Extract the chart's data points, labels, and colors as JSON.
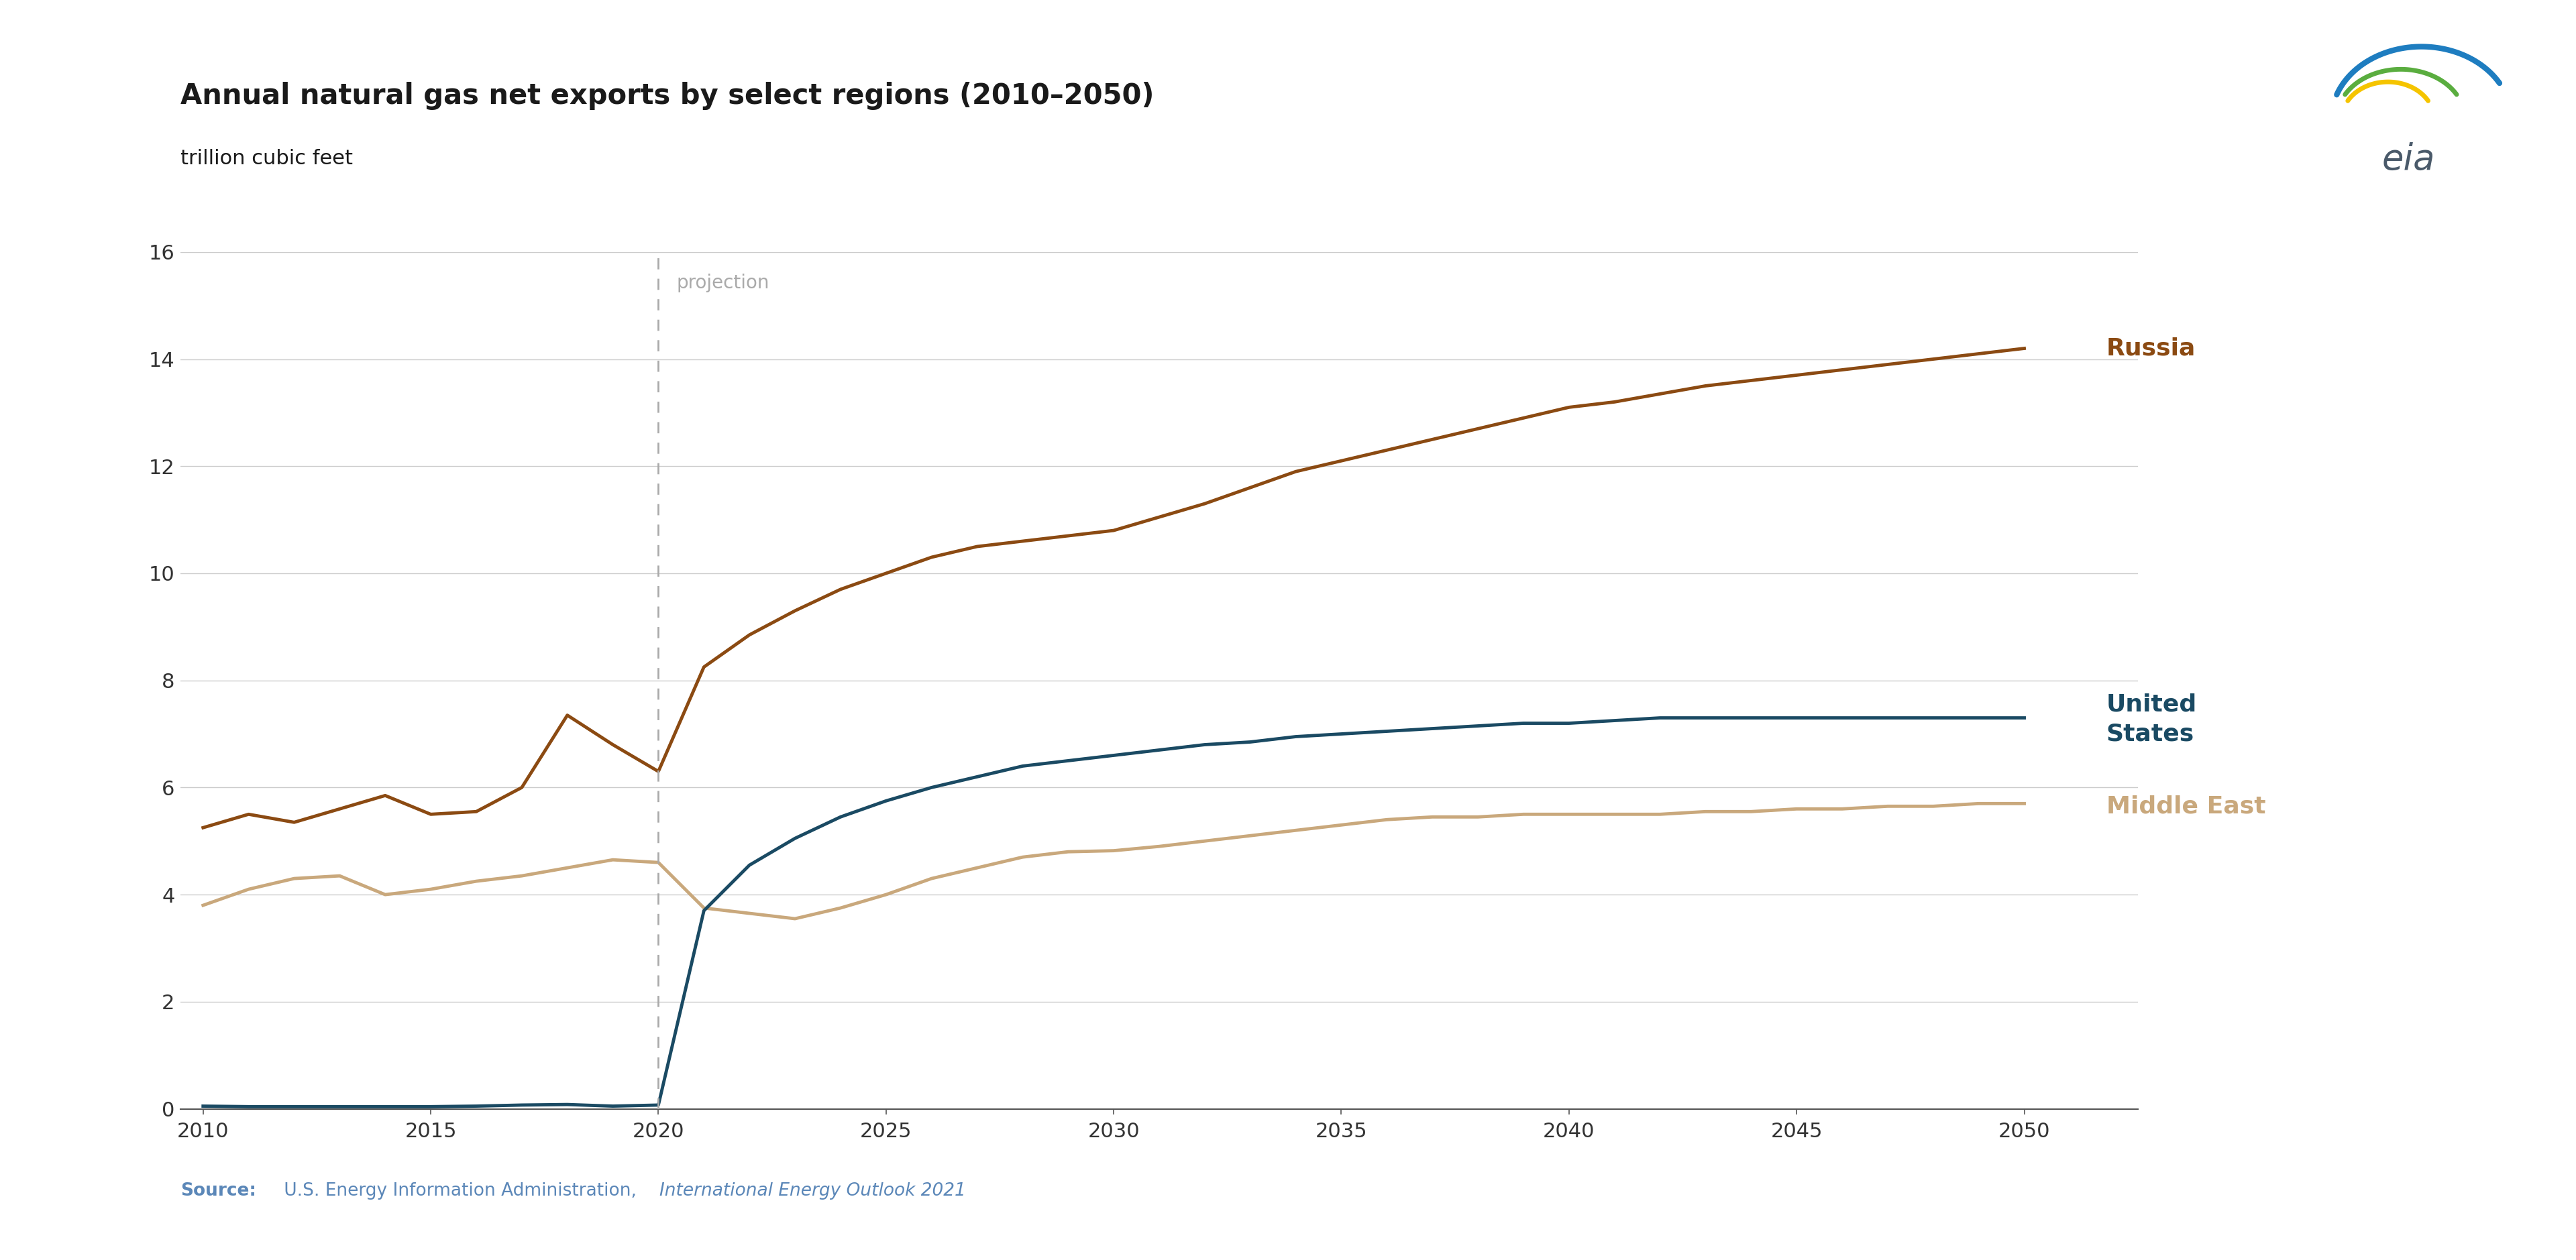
{
  "title": "Annual natural gas net exports by select regions (2010–2050)",
  "subtitle": "trillion cubic feet",
  "source_bold": "Source:",
  "source_normal": " U.S. Energy Information Administration, ",
  "source_italic": "International Energy Outlook 2021",
  "projection_label": "projection",
  "projection_year": 2020,
  "xlim": [
    2009.5,
    2052.5
  ],
  "ylim": [
    0,
    16
  ],
  "yticks": [
    0,
    2,
    4,
    6,
    8,
    10,
    12,
    14,
    16
  ],
  "xticks": [
    2010,
    2015,
    2020,
    2025,
    2030,
    2035,
    2040,
    2045,
    2050
  ],
  "russia_color": "#8B4A12",
  "us_color": "#1A4A63",
  "me_color": "#C9A87C",
  "russia_label": "Russia",
  "us_label": "United\nStates",
  "me_label": "Middle East",
  "background_color": "#FFFFFF",
  "grid_color": "#CCCCCC",
  "source_color": "#5B87B8",
  "title_color": "#1A1A1A",
  "russia_data_years": [
    2010,
    2011,
    2012,
    2013,
    2014,
    2015,
    2016,
    2017,
    2018,
    2019,
    2020,
    2021,
    2022,
    2023,
    2024,
    2025,
    2026,
    2027,
    2028,
    2029,
    2030,
    2031,
    2032,
    2033,
    2034,
    2035,
    2036,
    2037,
    2038,
    2039,
    2040,
    2041,
    2042,
    2043,
    2044,
    2045,
    2046,
    2047,
    2048,
    2049,
    2050
  ],
  "russia_data_vals": [
    5.25,
    5.5,
    5.35,
    5.6,
    5.85,
    5.5,
    5.55,
    6.0,
    7.35,
    6.8,
    6.3,
    8.25,
    8.85,
    9.3,
    9.7,
    10.0,
    10.3,
    10.5,
    10.6,
    10.7,
    10.8,
    11.05,
    11.3,
    11.6,
    11.9,
    12.1,
    12.3,
    12.5,
    12.7,
    12.9,
    13.1,
    13.2,
    13.35,
    13.5,
    13.6,
    13.7,
    13.8,
    13.9,
    14.0,
    14.1,
    14.2
  ],
  "us_data_years": [
    2010,
    2011,
    2012,
    2013,
    2014,
    2015,
    2016,
    2017,
    2018,
    2019,
    2020,
    2021,
    2022,
    2023,
    2024,
    2025,
    2026,
    2027,
    2028,
    2029,
    2030,
    2031,
    2032,
    2033,
    2034,
    2035,
    2036,
    2037,
    2038,
    2039,
    2040,
    2041,
    2042,
    2043,
    2044,
    2045,
    2046,
    2047,
    2048,
    2049,
    2050
  ],
  "us_data_vals": [
    0.05,
    0.04,
    0.04,
    0.04,
    0.04,
    0.04,
    0.05,
    0.07,
    0.08,
    0.05,
    0.07,
    3.7,
    4.55,
    5.05,
    5.45,
    5.75,
    6.0,
    6.2,
    6.4,
    6.5,
    6.6,
    6.7,
    6.8,
    6.85,
    6.95,
    7.0,
    7.05,
    7.1,
    7.15,
    7.2,
    7.2,
    7.25,
    7.3,
    7.3,
    7.3,
    7.3,
    7.3,
    7.3,
    7.3,
    7.3,
    7.3
  ],
  "me_data_years": [
    2010,
    2011,
    2012,
    2013,
    2014,
    2015,
    2016,
    2017,
    2018,
    2019,
    2020,
    2021,
    2022,
    2023,
    2024,
    2025,
    2026,
    2027,
    2028,
    2029,
    2030,
    2031,
    2032,
    2033,
    2034,
    2035,
    2036,
    2037,
    2038,
    2039,
    2040,
    2041,
    2042,
    2043,
    2044,
    2045,
    2046,
    2047,
    2048,
    2049,
    2050
  ],
  "me_data_vals": [
    3.8,
    4.1,
    4.3,
    4.35,
    4.0,
    4.1,
    4.25,
    4.35,
    4.5,
    4.65,
    4.6,
    3.75,
    3.65,
    3.55,
    3.75,
    4.0,
    4.3,
    4.5,
    4.7,
    4.8,
    4.82,
    4.9,
    5.0,
    5.1,
    5.2,
    5.3,
    5.4,
    5.45,
    5.45,
    5.5,
    5.5,
    5.5,
    5.5,
    5.55,
    5.55,
    5.6,
    5.6,
    5.65,
    5.65,
    5.7,
    5.7
  ]
}
